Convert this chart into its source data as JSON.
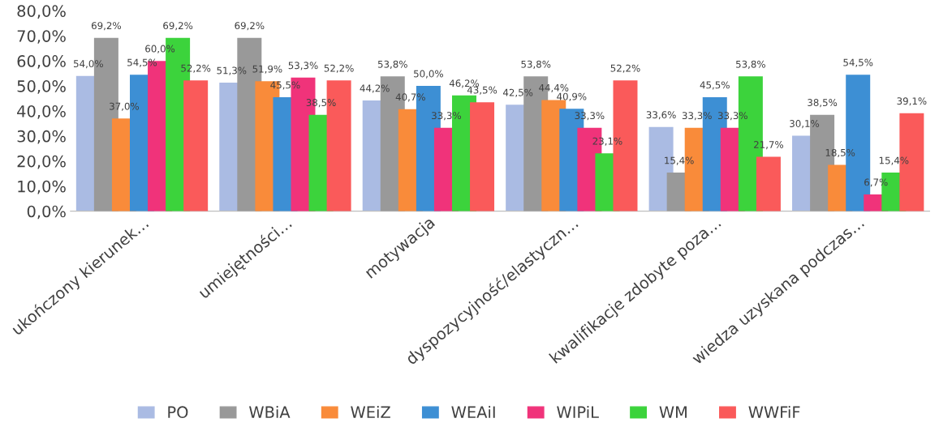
{
  "chart_data": {
    "type": "bar",
    "categories": [
      "ukończony kierunek…",
      "umiejętności…",
      "motywacja",
      "dyspozycyjność/elastyczn…",
      "kwalifikacje zdobyte poza…",
      "wiedza uzyskana podczas…"
    ],
    "series": [
      {
        "name": "PO",
        "color": "#aabbe3",
        "values": [
          54.0,
          51.3,
          44.2,
          42.5,
          33.6,
          30.1
        ],
        "value_labels": [
          "54,0%",
          "51,3%",
          "44,2%",
          "42,5%",
          "33,6%",
          "30,1%"
        ]
      },
      {
        "name": "WBiA",
        "color": "#999999",
        "values": [
          69.2,
          69.2,
          53.8,
          53.8,
          15.4,
          38.5
        ],
        "value_labels": [
          "69,2%",
          "69,2%",
          "53,8%",
          "53,8%",
          "15,4%",
          "38,5%"
        ]
      },
      {
        "name": "WEiZ",
        "color": "#f98b3a",
        "values": [
          37.0,
          51.9,
          40.7,
          44.4,
          33.3,
          18.5
        ],
        "value_labels": [
          "37,0%",
          "51,9%",
          "40,7%",
          "44,4%",
          "33,3%",
          "18,5%"
        ]
      },
      {
        "name": "WEAiI",
        "color": "#3d8fd4",
        "values": [
          54.5,
          45.5,
          50.0,
          40.9,
          45.5,
          54.5
        ],
        "value_labels": [
          "54,5%",
          "45,5%",
          "50,0%",
          "40,9%",
          "45,5%",
          "54,5%"
        ]
      },
      {
        "name": "WIPiL",
        "color": "#f0337a",
        "values": [
          60.0,
          53.3,
          33.3,
          33.3,
          33.3,
          6.7
        ],
        "value_labels": [
          "60,0%",
          "53,3%",
          "33,3%",
          "33,3%",
          "33,3%",
          "6,7%"
        ]
      },
      {
        "name": "WM",
        "color": "#3cd33c",
        "values": [
          69.2,
          38.5,
          46.2,
          23.1,
          53.8,
          15.4
        ],
        "value_labels": [
          "69,2%",
          "38,5%",
          "46,2%",
          "23,1%",
          "53,8%",
          "15,4%"
        ]
      },
      {
        "name": "WWFiF",
        "color": "#fa5a5a",
        "values": [
          52.2,
          52.2,
          43.5,
          52.2,
          21.7,
          39.1
        ],
        "value_labels": [
          "52,2%",
          "52,2%",
          "43,5%",
          "52,2%",
          "21,7%",
          "39,1%"
        ]
      }
    ],
    "ylim": [
      0,
      80
    ],
    "yticks": [
      {
        "value": 0,
        "label": "0,0%"
      },
      {
        "value": 10,
        "label": "10,0%"
      },
      {
        "value": 20,
        "label": "20,0%"
      },
      {
        "value": 30,
        "label": "30,0%"
      },
      {
        "value": 40,
        "label": "40,0%"
      },
      {
        "value": 50,
        "label": "50,0%"
      },
      {
        "value": 60,
        "label": "60,0%"
      },
      {
        "value": 70,
        "label": "70,0%"
      },
      {
        "value": 80,
        "label": "80,0%"
      }
    ],
    "grid": false,
    "legend": "bottom"
  }
}
